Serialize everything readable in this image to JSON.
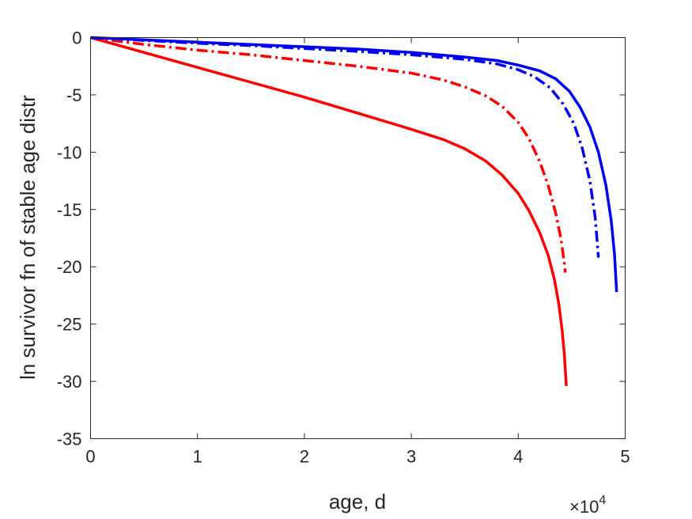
{
  "chart_data": {
    "type": "line",
    "title": "",
    "xlabel": "age, d",
    "ylabel": "ln survivor fn of stable age distr",
    "x_exponent_label": "×10",
    "x_exponent_power": "4",
    "xlim": [
      0,
      50000
    ],
    "ylim": [
      -35,
      0
    ],
    "x_ticks": [
      0,
      10000,
      20000,
      30000,
      40000,
      50000
    ],
    "x_tick_labels": [
      "0",
      "1",
      "2",
      "3",
      "4",
      "5"
    ],
    "y_ticks": [
      0,
      -5,
      -10,
      -15,
      -20,
      -25,
      -30,
      -35
    ],
    "y_tick_labels": [
      "0",
      "-5",
      "-10",
      "-15",
      "-20",
      "-25",
      "-30",
      "-35"
    ],
    "grid": false,
    "colors": {
      "red": "#ff0000",
      "blue": "#0000ee",
      "axis": "#262626"
    },
    "series": [
      {
        "color": "#ff0000",
        "style": "solid",
        "x": [
          0,
          5000,
          10000,
          15000,
          20000,
          25000,
          30000,
          33000,
          35000,
          37000,
          38500,
          40000,
          41000,
          42000,
          42800,
          43400,
          43800,
          44100,
          44300,
          44500
        ],
        "y": [
          0,
          -1.3,
          -2.6,
          -3.9,
          -5.2,
          -6.6,
          -8.0,
          -8.9,
          -9.7,
          -10.8,
          -12.0,
          -13.6,
          -15.1,
          -17.0,
          -19.0,
          -21.2,
          -23.3,
          -25.5,
          -27.5,
          -30.4
        ]
      },
      {
        "color": "#ff0000",
        "style": "dashdot",
        "x": [
          0,
          5000,
          10000,
          15000,
          20000,
          25000,
          30000,
          33000,
          35000,
          37000,
          38500,
          40000,
          41000,
          42000,
          42800,
          43500,
          44000,
          44300,
          44400
        ],
        "y": [
          0,
          -0.6,
          -1.1,
          -1.5,
          -2.0,
          -2.5,
          -3.1,
          -3.7,
          -4.3,
          -5.1,
          -6.0,
          -7.4,
          -8.8,
          -10.8,
          -12.9,
          -15.3,
          -17.6,
          -19.6,
          -20.5
        ]
      },
      {
        "color": "#0000ee",
        "style": "solid",
        "x": [
          0,
          5000,
          10000,
          15000,
          20000,
          25000,
          30000,
          35000,
          38000,
          40000,
          42000,
          43500,
          44800,
          45800,
          46700,
          47500,
          48200,
          48700,
          49000,
          49200
        ],
        "y": [
          0,
          -0.2,
          -0.4,
          -0.6,
          -0.8,
          -1.0,
          -1.3,
          -1.7,
          -2.0,
          -2.4,
          -2.9,
          -3.6,
          -4.7,
          -6.1,
          -7.8,
          -10.0,
          -12.9,
          -16.0,
          -18.9,
          -22.2
        ]
      },
      {
        "color": "#0000ee",
        "style": "dashdot",
        "x": [
          0,
          5000,
          10000,
          15000,
          20000,
          25000,
          30000,
          35000,
          38000,
          40000,
          41500,
          43000,
          44200,
          45200,
          46000,
          46700,
          47200,
          47500
        ],
        "y": [
          0,
          -0.25,
          -0.5,
          -0.7,
          -0.95,
          -1.2,
          -1.5,
          -1.9,
          -2.3,
          -2.8,
          -3.4,
          -4.4,
          -5.8,
          -7.5,
          -9.7,
          -12.5,
          -15.7,
          -19.2
        ]
      }
    ]
  }
}
